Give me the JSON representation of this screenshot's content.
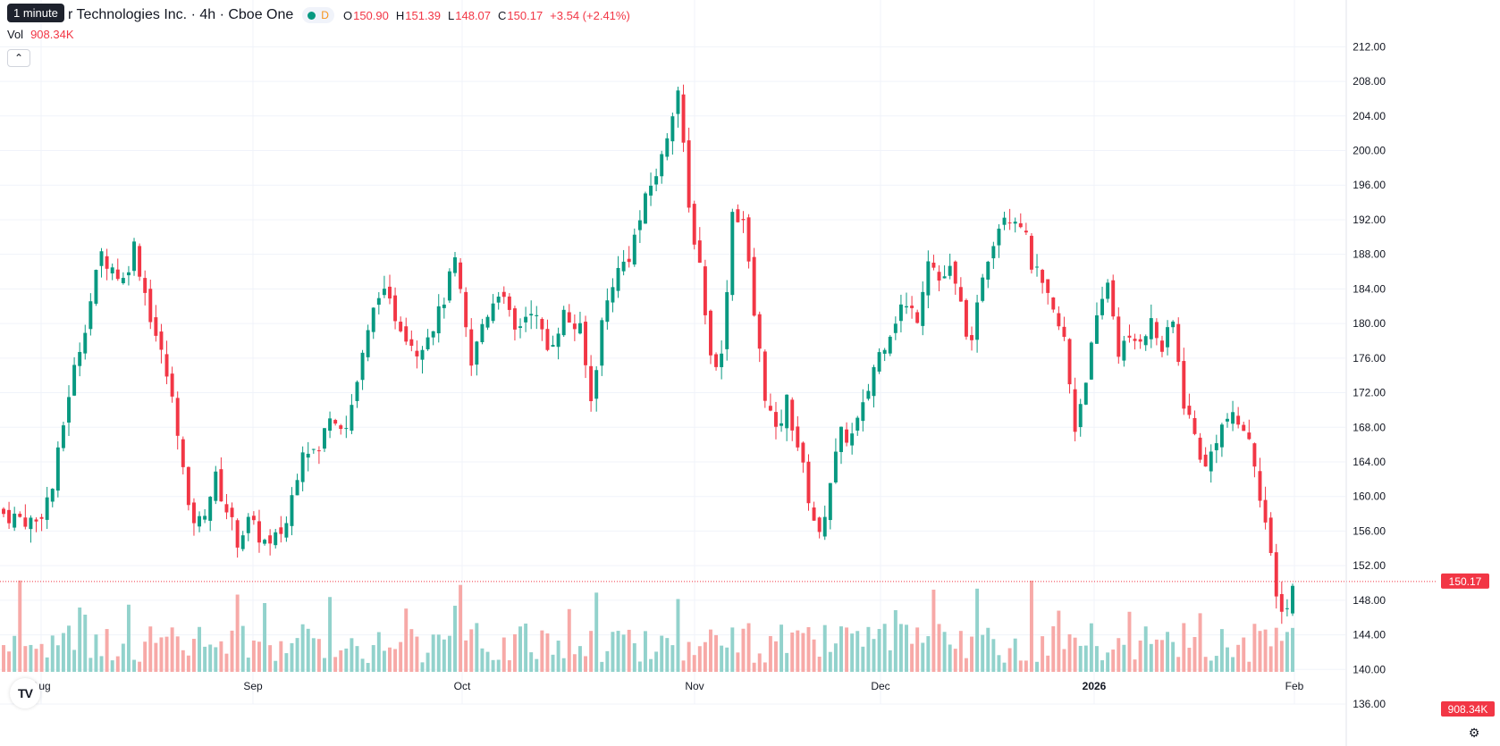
{
  "legend": {
    "tooltip": "1 minute",
    "title": "r Technologies Inc. · 4h · Cboe One",
    "status_letter": "D",
    "open_key": "O",
    "open": "150.90",
    "high_key": "H",
    "high": "151.39",
    "low_key": "L",
    "low": "148.07",
    "close_key": "C",
    "close": "150.17",
    "change": "+3.54 (+2.41%)",
    "vol_label": "Vol",
    "vol_value": "908.34K",
    "collapse_glyph": "⌃"
  },
  "badges": {
    "price": "150.17",
    "volume": "908.34K"
  },
  "icons": {
    "logo": "tradingview-logo-icon",
    "logo_glyph": "TV",
    "settings": "gear-icon",
    "settings_glyph": "⚙"
  },
  "colors": {
    "up": "#089981",
    "down": "#f23645",
    "vol_up": "#92d2cc",
    "vol_down": "#f7a9a7",
    "grid": "#f0f3fa",
    "text": "#131722"
  },
  "chart_data": {
    "type": "candlestick",
    "title": "r Technologies Inc. · 4h · Cboe One",
    "interval": "4h",
    "ylim": [
      136,
      214
    ],
    "y_ticks": [
      "212.00",
      "208.00",
      "204.00",
      "200.00",
      "196.00",
      "192.00",
      "188.00",
      "184.00",
      "180.00",
      "176.00",
      "172.00",
      "168.00",
      "164.00",
      "160.00",
      "156.00",
      "152.00",
      "148.00",
      "144.00",
      "140.00",
      "136.00"
    ],
    "x_ticks": [
      "Aug",
      "Sep",
      "Oct",
      "Nov",
      "Dec",
      "2026",
      "Feb"
    ],
    "current_price": 150.17,
    "last_volume": "908.34K",
    "anchors": [
      {
        "i": 0,
        "close": 158
      },
      {
        "i": 6,
        "close": 157
      },
      {
        "i": 9,
        "close": 161
      },
      {
        "i": 12,
        "close": 172
      },
      {
        "i": 15,
        "close": 180
      },
      {
        "i": 18,
        "close": 188
      },
      {
        "i": 22,
        "close": 185
      },
      {
        "i": 24,
        "close": 189
      },
      {
        "i": 27,
        "close": 181
      },
      {
        "i": 30,
        "close": 174
      },
      {
        "i": 32,
        "close": 168
      },
      {
        "i": 34,
        "close": 158
      },
      {
        "i": 36,
        "close": 157
      },
      {
        "i": 39,
        "close": 162
      },
      {
        "i": 43,
        "close": 155
      },
      {
        "i": 45,
        "close": 157
      },
      {
        "i": 49,
        "close": 154
      },
      {
        "i": 52,
        "close": 157
      },
      {
        "i": 55,
        "close": 166
      },
      {
        "i": 58,
        "close": 165
      },
      {
        "i": 60,
        "close": 170
      },
      {
        "i": 63,
        "close": 168
      },
      {
        "i": 66,
        "close": 176
      },
      {
        "i": 69,
        "close": 184
      },
      {
        "i": 73,
        "close": 180
      },
      {
        "i": 76,
        "close": 177
      },
      {
        "i": 80,
        "close": 181
      },
      {
        "i": 83,
        "close": 187
      },
      {
        "i": 86,
        "close": 175
      },
      {
        "i": 88,
        "close": 180
      },
      {
        "i": 91,
        "close": 184
      },
      {
        "i": 94,
        "close": 179
      },
      {
        "i": 97,
        "close": 182
      },
      {
        "i": 100,
        "close": 177
      },
      {
        "i": 103,
        "close": 181
      },
      {
        "i": 106,
        "close": 179
      },
      {
        "i": 108,
        "close": 171
      },
      {
        "i": 110,
        "close": 180
      },
      {
        "i": 112,
        "close": 185
      },
      {
        "i": 115,
        "close": 188
      },
      {
        "i": 117,
        "close": 192
      },
      {
        "i": 119,
        "close": 196
      },
      {
        "i": 121,
        "close": 199
      },
      {
        "i": 123,
        "close": 205
      },
      {
        "i": 124,
        "close": 207
      },
      {
        "i": 126,
        "close": 193
      },
      {
        "i": 128,
        "close": 187
      },
      {
        "i": 130,
        "close": 176
      },
      {
        "i": 132,
        "close": 176
      },
      {
        "i": 134,
        "close": 193
      },
      {
        "i": 136,
        "close": 192
      },
      {
        "i": 138,
        "close": 181
      },
      {
        "i": 140,
        "close": 172
      },
      {
        "i": 142,
        "close": 167
      },
      {
        "i": 144,
        "close": 171
      },
      {
        "i": 146,
        "close": 166
      },
      {
        "i": 148,
        "close": 160
      },
      {
        "i": 150,
        "close": 155
      },
      {
        "i": 152,
        "close": 162
      },
      {
        "i": 154,
        "close": 167
      },
      {
        "i": 156,
        "close": 167
      },
      {
        "i": 158,
        "close": 170
      },
      {
        "i": 160,
        "close": 175
      },
      {
        "i": 162,
        "close": 178
      },
      {
        "i": 165,
        "close": 182
      },
      {
        "i": 168,
        "close": 181
      },
      {
        "i": 170,
        "close": 188
      },
      {
        "i": 172,
        "close": 185
      },
      {
        "i": 174,
        "close": 186
      },
      {
        "i": 176,
        "close": 182
      },
      {
        "i": 178,
        "close": 177
      },
      {
        "i": 180,
        "close": 186
      },
      {
        "i": 182,
        "close": 190
      },
      {
        "i": 184,
        "close": 193
      },
      {
        "i": 187,
        "close": 192
      },
      {
        "i": 189,
        "close": 187
      },
      {
        "i": 191,
        "close": 184
      },
      {
        "i": 193,
        "close": 181
      },
      {
        "i": 195,
        "close": 178
      },
      {
        "i": 197,
        "close": 168
      },
      {
        "i": 199,
        "close": 174
      },
      {
        "i": 201,
        "close": 180
      },
      {
        "i": 203,
        "close": 185
      },
      {
        "i": 205,
        "close": 177
      },
      {
        "i": 208,
        "close": 178
      },
      {
        "i": 211,
        "close": 180
      },
      {
        "i": 213,
        "close": 177
      },
      {
        "i": 215,
        "close": 180
      },
      {
        "i": 217,
        "close": 171
      },
      {
        "i": 219,
        "close": 167
      },
      {
        "i": 221,
        "close": 163
      },
      {
        "i": 223,
        "close": 167
      },
      {
        "i": 225,
        "close": 169
      },
      {
        "i": 228,
        "close": 168
      },
      {
        "i": 230,
        "close": 164
      },
      {
        "i": 232,
        "close": 157
      },
      {
        "i": 234,
        "close": 148
      },
      {
        "i": 236,
        "close": 147
      },
      {
        "i": 237,
        "close": 150.17
      }
    ],
    "n_bars": 238
  }
}
